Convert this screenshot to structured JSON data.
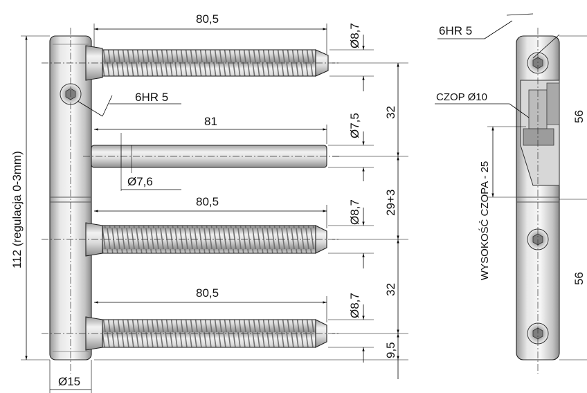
{
  "labels": {
    "screw_top_length": "80,5",
    "screw_top_dia": "Ø8,7",
    "hex_left": "6HR 5",
    "pin_length": "81",
    "pin_dia_right": "Ø7,5",
    "pin_dia_below": "Ø7,6",
    "screw_mid_length": "80,5",
    "screw_mid_dia": "Ø8,7",
    "screw_bot_length": "80,5",
    "screw_bot_dia": "Ø8,7",
    "total_height": "112 (regulacja 0-3mm)",
    "barrel_dia": "Ø15",
    "spacing_top": "32",
    "spacing_mid": "29+3",
    "spacing_bot": "32",
    "bottom_offset": "9,5",
    "hex_right": "6HR 5",
    "czop": "CZOP Ø10",
    "czop_height": "WYSOKOŚĆ CZOPA - 25",
    "upper_half": "56",
    "lower_half": "56"
  },
  "colors": {
    "metal_light": "#f4f4f4",
    "metal_mid": "#cfcfcf",
    "metal_dark": "#8a8a8a",
    "line": "#000000"
  }
}
